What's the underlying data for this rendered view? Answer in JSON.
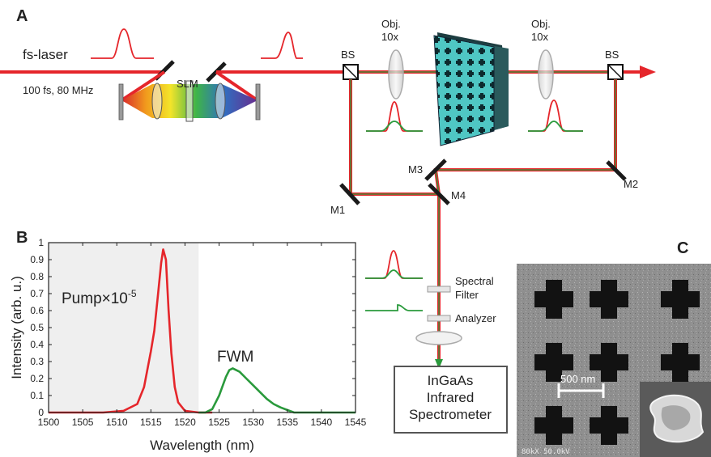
{
  "panel_labels": {
    "a": "A",
    "b": "B",
    "c": "C"
  },
  "setup": {
    "laser_label": "fs-laser",
    "laser_spec": "100 fs, 80 MHz",
    "slm_label": "SLM",
    "bs_label": "BS",
    "obj_line1": "Obj.",
    "obj_line2": "10x",
    "mirrors": {
      "m1": "M1",
      "m2": "M2",
      "m3": "M3",
      "m4": "M4"
    },
    "filter_line1": "Spectral",
    "filter_line2": "Filter",
    "analyzer_label": "Analyzer",
    "spectrometer": {
      "line1": "InGaAs",
      "line2": "Infrared",
      "line3": "Spectrometer"
    },
    "colors": {
      "pump": "#e5262b",
      "signal": "#2a9a3c",
      "sample": "#4fc7c4"
    }
  },
  "chart_data": {
    "type": "line",
    "xlabel": "Wavelength (nm)",
    "ylabel": "Intensity (arb. u.)",
    "xlim": [
      1500,
      1545
    ],
    "ylim": [
      0,
      1
    ],
    "xticks": [
      1500,
      1505,
      1510,
      1515,
      1520,
      1525,
      1530,
      1535,
      1540,
      1545
    ],
    "yticks": [
      0,
      0.1,
      0.2,
      0.3,
      0.4,
      0.5,
      0.6,
      0.7,
      0.8,
      0.9,
      1
    ],
    "shaded_region": [
      1500,
      1522
    ],
    "annotations": {
      "pump_base": "Pump×10",
      "pump_exp": "-5",
      "fwm": "FWM"
    },
    "series": [
      {
        "color": "#e5262b",
        "x": [
          1500,
          1508,
          1511,
          1513,
          1514,
          1515,
          1515.5,
          1516,
          1516.5,
          1516.8,
          1517.2,
          1517.6,
          1518,
          1518.5,
          1519,
          1520,
          1522,
          1524
        ],
        "y": [
          0,
          0,
          0.01,
          0.05,
          0.15,
          0.36,
          0.48,
          0.68,
          0.88,
          0.96,
          0.9,
          0.6,
          0.35,
          0.15,
          0.06,
          0.01,
          0,
          0
        ]
      },
      {
        "color": "#2a9a3c",
        "x": [
          1522,
          1523,
          1524,
          1525,
          1526,
          1526.5,
          1527,
          1528,
          1529,
          1530,
          1531,
          1532,
          1533,
          1534,
          1535,
          1536,
          1538,
          1545
        ],
        "y": [
          0,
          0,
          0.02,
          0.1,
          0.21,
          0.25,
          0.26,
          0.24,
          0.2,
          0.16,
          0.12,
          0.08,
          0.05,
          0.03,
          0.015,
          0,
          0,
          0
        ]
      }
    ]
  },
  "sem": {
    "scale_bar": "500 nm",
    "footer": "80kX  50.0kV"
  }
}
